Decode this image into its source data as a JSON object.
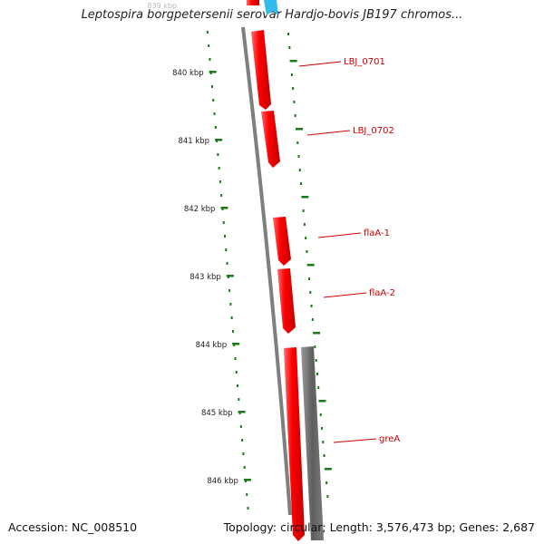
{
  "title": "Leptospira borgpetersenii serovar Hardjo-bovis JB197 chromos...",
  "footer": {
    "accession": "Accession: NC_008510",
    "topology": "Topology: circular; Length: 3,576,473 bp; Genes: 2,687"
  },
  "colors": {
    "forward_gene": "#ff0000",
    "reverse_gene": "#666666",
    "other_feature": "#33bbee",
    "tick": "#1a7a1a",
    "label": "#cc0000",
    "backbone": "#808080"
  },
  "ruler": {
    "unit": "kbp",
    "partial_top_label": "839 kbp",
    "ticks": [
      840,
      841,
      842,
      843,
      844,
      845,
      846
    ]
  },
  "genes": [
    {
      "name": "LBJ_0701",
      "strand": "forward",
      "labeled": true
    },
    {
      "name": "LBJ_0702",
      "strand": "forward",
      "labeled": true
    },
    {
      "name": "flaA-1",
      "strand": "forward",
      "labeled": true
    },
    {
      "name": "flaA-2",
      "strand": "forward",
      "labeled": true
    },
    {
      "name": "greA",
      "strand": "forward",
      "labeled": true
    },
    {
      "name": "",
      "strand": "reverse",
      "labeled": false
    }
  ]
}
